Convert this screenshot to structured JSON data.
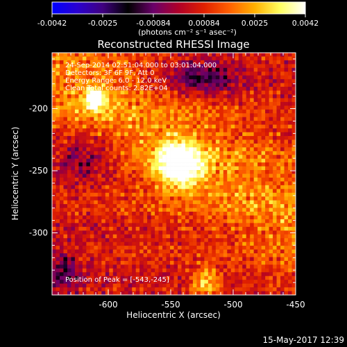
{
  "colorbar": {
    "ticks": [
      "-0.0042",
      "-0.0025",
      "-0.00084",
      "0.00084",
      "0.0025",
      "0.0042"
    ],
    "unit": "(photons cm⁻² s⁻¹ asec⁻²)",
    "palette": [
      "#0000ff",
      "#2a00d0",
      "#400080",
      "#000000",
      "#6a006a",
      "#b00028",
      "#e02000",
      "#ff6000",
      "#ffb000",
      "#ffff60",
      "#ffffff"
    ]
  },
  "plot": {
    "title": "Reconstructed RHESSI Image",
    "xlabel": "Heliocentric X (arcsec)",
    "ylabel": "Heliocentric Y (arcsec)",
    "xticks": [
      "-600",
      "-550",
      "-500",
      "-450"
    ],
    "yticks": [
      "-200",
      "-250",
      "-300"
    ],
    "info": [
      "24-Sep-2014 02:51:04.000 to 03:01:04.000",
      "Detectors: 3F 6F 9F, Att 0",
      "Energy Range: 6.0 - 12.0 keV",
      "Clean     Total counts: 2.82E+04"
    ],
    "peak_label": "Position of Peak = [-543,-245]"
  },
  "footer": {
    "timestamp": "15-May-2017 12:39"
  },
  "chart_data": {
    "type": "heatmap",
    "title": "Reconstructed RHESSI Image",
    "xlabel": "Heliocentric X (arcsec)",
    "ylabel": "Heliocentric Y (arcsec)",
    "xlim": [
      -645,
      -450
    ],
    "ylim": [
      -350,
      -155
    ],
    "colorbar_range": [
      -0.0042,
      0.0042
    ],
    "colorbar_label": "(photons cm⁻² s⁻¹ asec⁻²)",
    "peak": {
      "x": -543,
      "y": -245
    },
    "sources": [
      {
        "x": -543,
        "y": -245
      },
      {
        "x": -610,
        "y": -192
      },
      {
        "x": -522,
        "y": -340
      }
    ]
  }
}
